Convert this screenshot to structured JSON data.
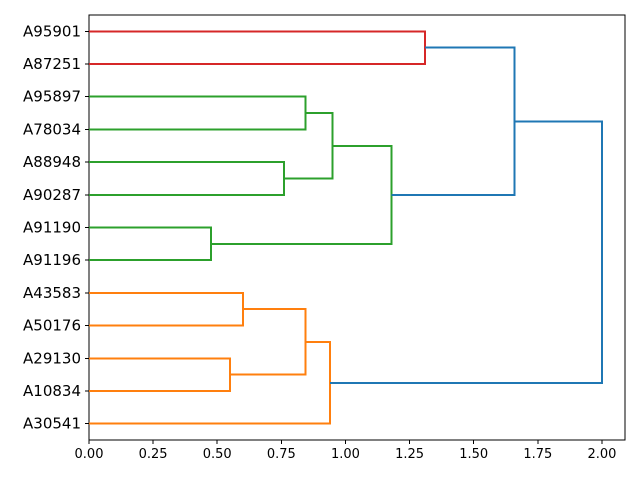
{
  "figure": {
    "background": "#ffffff",
    "title": ""
  },
  "chart_data": {
    "type": "dendrogram",
    "orientation": "right",
    "title": "",
    "xlabel": "",
    "ylabel": "",
    "grid": false,
    "legend": null,
    "x_axis": {
      "range": [
        0.0,
        2.09
      ],
      "ticks": [
        {
          "value": 0.0,
          "label": "0.00"
        },
        {
          "value": 0.25,
          "label": "0.25"
        },
        {
          "value": 0.5,
          "label": "0.50"
        },
        {
          "value": 0.75,
          "label": "0.75"
        },
        {
          "value": 1.0,
          "label": "1.00"
        },
        {
          "value": 1.25,
          "label": "1.25"
        },
        {
          "value": 1.5,
          "label": "1.50"
        },
        {
          "value": 1.75,
          "label": "1.75"
        },
        {
          "value": 2.0,
          "label": "2.00"
        }
      ]
    },
    "leaves": [
      "A95901",
      "A87251",
      "A95897",
      "A78034",
      "A88948",
      "A90287",
      "A91190",
      "A91196",
      "A43583",
      "A50176",
      "A29130",
      "A10834",
      "A30541"
    ],
    "merges": [
      {
        "id": "m1",
        "a": "A91190",
        "b": "A91196",
        "dist": 0.475,
        "color": "green"
      },
      {
        "id": "m2",
        "a": "A29130",
        "b": "A10834",
        "dist": 0.55,
        "color": "orange"
      },
      {
        "id": "m3",
        "a": "A43583",
        "b": "A50176",
        "dist": 0.6,
        "color": "orange"
      },
      {
        "id": "m4",
        "a": "A88948",
        "b": "A90287",
        "dist": 0.76,
        "color": "green"
      },
      {
        "id": "m5",
        "a": "A95897",
        "b": "A78034",
        "dist": 0.845,
        "color": "green"
      },
      {
        "id": "m6",
        "a": "m3",
        "b": "m2",
        "dist": 0.845,
        "color": "orange"
      },
      {
        "id": "m7",
        "a": "m5",
        "b": "m4",
        "dist": 0.95,
        "color": "green"
      },
      {
        "id": "m8",
        "a": "m6",
        "b": "A30541",
        "dist": 0.94,
        "color": "orange"
      },
      {
        "id": "m9",
        "a": "m7",
        "b": "m1",
        "dist": 1.18,
        "color": "green"
      },
      {
        "id": "m10",
        "a": "A95901",
        "b": "A87251",
        "dist": 1.31,
        "color": "red"
      },
      {
        "id": "m11",
        "a": "m10",
        "b": "m9",
        "dist": 1.66,
        "color": "blue"
      },
      {
        "id": "m12",
        "a": "m11",
        "b": "m8",
        "dist": 2.0,
        "color": "blue"
      }
    ],
    "palette": {
      "blue": "#1f77b4",
      "orange": "#ff7f0e",
      "green": "#2ca02c",
      "red": "#d62728"
    },
    "spine_color": "#000000",
    "tick_color": "#000000",
    "label_color": "#000000"
  }
}
